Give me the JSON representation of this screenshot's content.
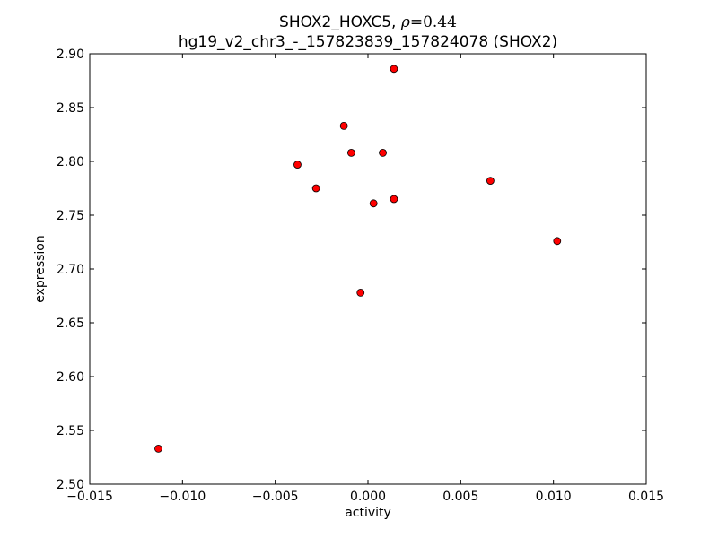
{
  "chart_data": {
    "type": "scatter",
    "title_line1_prefix": "SHOX2_HOXC5, ",
    "title_rho_symbol": "ρ",
    "title_rho_value": "=0.44",
    "title_line2": "hg19_v2_chr3_-_157823839_157824078 (SHOX2)",
    "xlabel": "activity",
    "ylabel": "expression",
    "xlim": [
      -0.015,
      0.015
    ],
    "ylim": [
      2.5,
      2.9
    ],
    "xticks": [
      -0.015,
      -0.01,
      -0.005,
      0.0,
      0.005,
      0.01,
      0.015
    ],
    "xtick_labels": [
      "−0.015",
      "−0.010",
      "−0.005",
      "0.000",
      "0.005",
      "0.010",
      "0.015"
    ],
    "yticks": [
      2.5,
      2.55,
      2.6,
      2.65,
      2.7,
      2.75,
      2.8,
      2.85,
      2.9
    ],
    "ytick_labels": [
      "2.50",
      "2.55",
      "2.60",
      "2.65",
      "2.70",
      "2.75",
      "2.80",
      "2.85",
      "2.90"
    ],
    "grid": false,
    "marker_color": "#ff0000",
    "marker_edge_color": "#000000",
    "points": [
      {
        "x": 0.0014,
        "y": 2.886
      },
      {
        "x": -0.0013,
        "y": 2.833
      },
      {
        "x": -0.0009,
        "y": 2.808
      },
      {
        "x": 0.0008,
        "y": 2.808
      },
      {
        "x": -0.0038,
        "y": 2.797
      },
      {
        "x": -0.0028,
        "y": 2.775
      },
      {
        "x": 0.0066,
        "y": 2.782
      },
      {
        "x": 0.0014,
        "y": 2.765
      },
      {
        "x": 0.0003,
        "y": 2.761
      },
      {
        "x": 0.0102,
        "y": 2.726
      },
      {
        "x": -0.0004,
        "y": 2.678
      },
      {
        "x": -0.0113,
        "y": 2.533
      }
    ]
  }
}
